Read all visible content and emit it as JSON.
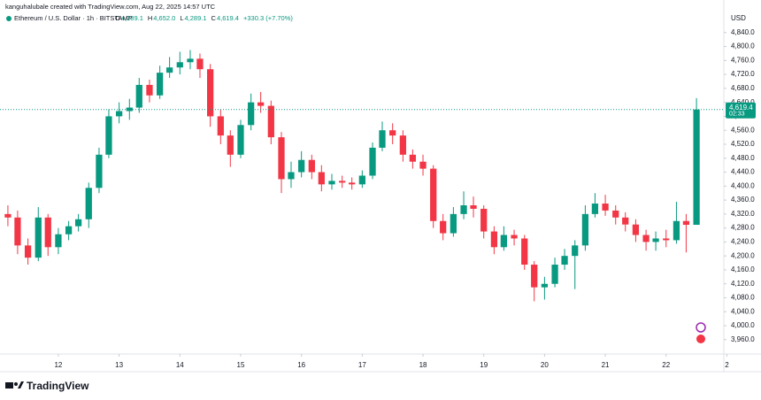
{
  "header": {
    "credit": "kanguhalubale created with TradingView.com, Aug 22, 2025 14:57 UTC",
    "currency": "USD",
    "symbol": "Ethereum / U.S. Dollar · 1h · BITSTAMP",
    "ohlc": [
      {
        "label": "O",
        "value": "4,289.1"
      },
      {
        "label": "H",
        "value": "4,652.0"
      },
      {
        "label": "L",
        "value": "4,289.1"
      },
      {
        "label": "C",
        "value": "4,619.4"
      }
    ],
    "change": "+330.3 (+7.70%)"
  },
  "price_tag": {
    "price": "4,619.4",
    "countdown": "02:33"
  },
  "footer": {
    "brand": "TradingView"
  },
  "chart_data": {
    "type": "candlestick",
    "up_color": "#089981",
    "down_color": "#f23645",
    "x": [
      11.17,
      11.33,
      11.5,
      11.67,
      11.83,
      12,
      12.17,
      12.33,
      12.5,
      12.67,
      12.83,
      13,
      13.17,
      13.33,
      13.5,
      13.67,
      13.83,
      14,
      14.17,
      14.33,
      14.5,
      14.67,
      14.83,
      15,
      15.17,
      15.33,
      15.5,
      15.67,
      15.83,
      16,
      16.17,
      16.33,
      16.5,
      16.67,
      16.83,
      17,
      17.17,
      17.33,
      17.5,
      17.67,
      17.83,
      18,
      18.17,
      18.33,
      18.5,
      18.67,
      18.83,
      19,
      19.17,
      19.33,
      19.5,
      19.67,
      19.83,
      20,
      20.17,
      20.33,
      20.5,
      20.67,
      20.83,
      21,
      21.17,
      21.33,
      21.5,
      21.67,
      21.83,
      22,
      22.17,
      22.33,
      22.5
    ],
    "open": [
      4320,
      4310,
      4230,
      4195,
      4310,
      4225,
      4262,
      4285,
      4305,
      4395,
      4490,
      4600,
      4615,
      4625,
      4690,
      4660,
      4725,
      4740,
      4755,
      4765,
      4735,
      4600,
      4545,
      4490,
      4575,
      4640,
      4630,
      4540,
      4420,
      4440,
      4475,
      4440,
      4405,
      4415,
      4410,
      4405,
      4430,
      4510,
      4560,
      4545,
      4490,
      4470,
      4450,
      4300,
      4265,
      4320,
      4345,
      4335,
      4270,
      4225,
      4260,
      4250,
      4175,
      4110,
      4120,
      4175,
      4200,
      4230,
      4320,
      4350,
      4330,
      4310,
      4290,
      4260,
      4240,
      4250,
      4245,
      4300,
      4289.1
    ],
    "high": [
      4345,
      4330,
      4250,
      4340,
      4320,
      4280,
      4300,
      4320,
      4410,
      4510,
      4620,
      4640,
      4650,
      4710,
      4705,
      4745,
      4770,
      4785,
      4790,
      4780,
      4750,
      4620,
      4560,
      4590,
      4665,
      4670,
      4645,
      4555,
      4470,
      4500,
      4490,
      4460,
      4435,
      4430,
      4425,
      4445,
      4525,
      4585,
      4580,
      4560,
      4505,
      4490,
      4460,
      4320,
      4340,
      4385,
      4370,
      4345,
      4285,
      4285,
      4275,
      4260,
      4185,
      4140,
      4195,
      4220,
      4245,
      4345,
      4380,
      4375,
      4345,
      4325,
      4305,
      4275,
      4270,
      4275,
      4355,
      4320,
      4652.0
    ],
    "low": [
      4285,
      4205,
      4175,
      4185,
      4200,
      4205,
      4245,
      4270,
      4280,
      4380,
      4480,
      4580,
      4590,
      4610,
      4640,
      4650,
      4710,
      4720,
      4735,
      4710,
      4570,
      4520,
      4455,
      4480,
      4560,
      4610,
      4520,
      4380,
      4395,
      4425,
      4420,
      4385,
      4390,
      4395,
      4390,
      4395,
      4420,
      4500,
      4520,
      4470,
      4450,
      4430,
      4280,
      4245,
      4255,
      4305,
      4310,
      4250,
      4205,
      4215,
      4230,
      4160,
      4070,
      4075,
      4110,
      4160,
      4105,
      4215,
      4310,
      4315,
      4290,
      4270,
      4240,
      4215,
      4215,
      4225,
      4235,
      4210,
      4289.1
    ],
    "close": [
      4310,
      4230,
      4195,
      4310,
      4225,
      4262,
      4285,
      4305,
      4395,
      4490,
      4600,
      4615,
      4625,
      4690,
      4660,
      4725,
      4740,
      4755,
      4765,
      4735,
      4600,
      4545,
      4490,
      4575,
      4640,
      4630,
      4540,
      4420,
      4440,
      4475,
      4440,
      4405,
      4415,
      4410,
      4405,
      4430,
      4510,
      4560,
      4545,
      4490,
      4470,
      4450,
      4300,
      4265,
      4320,
      4345,
      4335,
      4270,
      4225,
      4260,
      4250,
      4175,
      4110,
      4120,
      4175,
      4200,
      4230,
      4320,
      4350,
      4330,
      4310,
      4290,
      4260,
      4240,
      4250,
      4245,
      4300,
      4289.1,
      4619.4
    ],
    "xlim": [
      11.04,
      22.95
    ],
    "xticks": [
      12,
      13,
      14,
      15,
      16,
      17,
      18,
      19,
      20,
      21,
      22,
      {
        "value": 23,
        "label": "2"
      }
    ],
    "ylim": [
      3919,
      4913
    ],
    "yticks": [
      {
        "value": 3960,
        "label": "3,960.0"
      },
      {
        "value": 4000,
        "label": "4,000.0"
      },
      {
        "value": 4040,
        "label": "4,040.0"
      },
      {
        "value": 4080,
        "label": "4,080.0"
      },
      {
        "value": 4120,
        "label": "4,120.0"
      },
      {
        "value": 4160,
        "label": "4,160.0"
      },
      {
        "value": 4200,
        "label": "4,200.0"
      },
      {
        "value": 4240,
        "label": "4,240.0"
      },
      {
        "value": 4280,
        "label": "4,280.0"
      },
      {
        "value": 4320,
        "label": "4,320.0"
      },
      {
        "value": 4360,
        "label": "4,360.0"
      },
      {
        "value": 4400,
        "label": "4,400.0"
      },
      {
        "value": 4440,
        "label": "4,440.0"
      },
      {
        "value": 4480,
        "label": "4,480.0"
      },
      {
        "value": 4520,
        "label": "4,520.0"
      },
      {
        "value": 4560,
        "label": "4,560.0"
      },
      {
        "value": 4600,
        "label": "4,600.0"
      },
      {
        "value": 4640,
        "label": "4,640.0"
      },
      {
        "value": 4680,
        "label": "4,680.0"
      },
      {
        "value": 4720,
        "label": "4,720.0"
      },
      {
        "value": 4760,
        "label": "4,760.0"
      },
      {
        "value": 4800,
        "label": "4,800.0"
      },
      {
        "value": 4840,
        "label": "4,840.0"
      }
    ]
  }
}
